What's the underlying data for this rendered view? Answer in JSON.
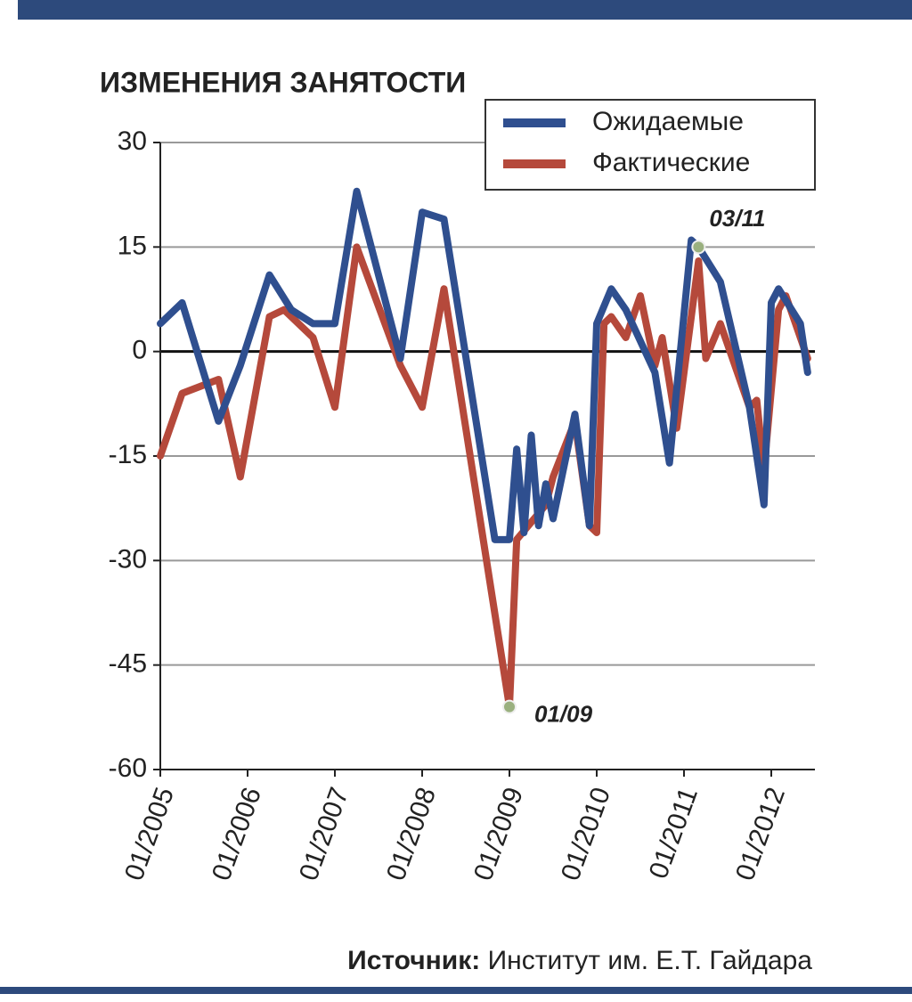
{
  "chart_data": {
    "type": "line",
    "title": "ИЗМЕНЕНИЯ ЗАНЯТОСТИ",
    "source_label": "Источник:",
    "source_text": "Институт им. Е.Т. Гайдара",
    "xlim": [
      "01/2005",
      "07/2012"
    ],
    "xticks": [
      "01/2005",
      "01/2006",
      "01/2007",
      "01/2008",
      "01/2009",
      "01/2010",
      "01/2011",
      "01/2012"
    ],
    "ylim": [
      -60,
      30
    ],
    "yticks": [
      -60,
      -45,
      -30,
      -15,
      0,
      15,
      30
    ],
    "grid": true,
    "legend": "top-right",
    "series": [
      {
        "name": "Ожидаемые",
        "color": "#2f4f8f",
        "x": [
          "01/2005",
          "04/2005",
          "09/2005",
          "12/2005",
          "04/2006",
          "07/2006",
          "10/2006",
          "01/2007",
          "04/2007",
          "10/2007",
          "01/2008",
          "04/2008",
          "11/2008",
          "01/2009",
          "02/2009",
          "03/2009",
          "04/2009",
          "05/2009",
          "06/2009",
          "07/2009",
          "10/2009",
          "12/2009",
          "01/2010",
          "03/2010",
          "05/2010",
          "09/2010",
          "11/2010",
          "02/2011",
          "03/2011",
          "06/2011",
          "10/2011",
          "12/2011",
          "01/2012",
          "02/2012",
          "05/2012",
          "06/2012"
        ],
        "values": [
          4,
          7,
          -10,
          -2,
          11,
          6,
          4,
          4,
          23,
          -1,
          20,
          19,
          -27,
          -27,
          -14,
          -26,
          -12,
          -25,
          -19,
          -24,
          -9,
          -25,
          4,
          9,
          6,
          -3,
          -16,
          16,
          15,
          10,
          -8,
          -22,
          7,
          9,
          4,
          -3
        ]
      },
      {
        "name": "Фактические",
        "color": "#b5493b",
        "x": [
          "01/2005",
          "04/2005",
          "09/2005",
          "12/2005",
          "04/2006",
          "06/2006",
          "10/2006",
          "01/2007",
          "04/2007",
          "10/2007",
          "01/2008",
          "04/2008",
          "01/2009",
          "02/2009",
          "06/2009",
          "07/2009",
          "10/2009",
          "12/2009",
          "01/2010",
          "02/2010",
          "03/2010",
          "05/2010",
          "07/2010",
          "09/2010",
          "10/2010",
          "12/2010",
          "03/2011",
          "04/2011",
          "06/2011",
          "10/2011",
          "11/2011",
          "12/2011",
          "02/2012",
          "03/2012",
          "06/2012"
        ],
        "values": [
          -15,
          -6,
          -4,
          -18,
          5,
          6,
          2,
          -8,
          15,
          -2,
          -8,
          9,
          -51,
          -27,
          -22,
          -18,
          -10,
          -25,
          -26,
          4,
          5,
          2,
          8,
          -2,
          2,
          -11,
          13,
          -1,
          4,
          -8,
          -7,
          -17,
          6,
          8,
          -1
        ]
      }
    ],
    "annotations": [
      {
        "text": "03/11",
        "x": "03/2011",
        "y": 15
      },
      {
        "text": "01/09",
        "x": "01/2009",
        "y": -51
      }
    ]
  }
}
